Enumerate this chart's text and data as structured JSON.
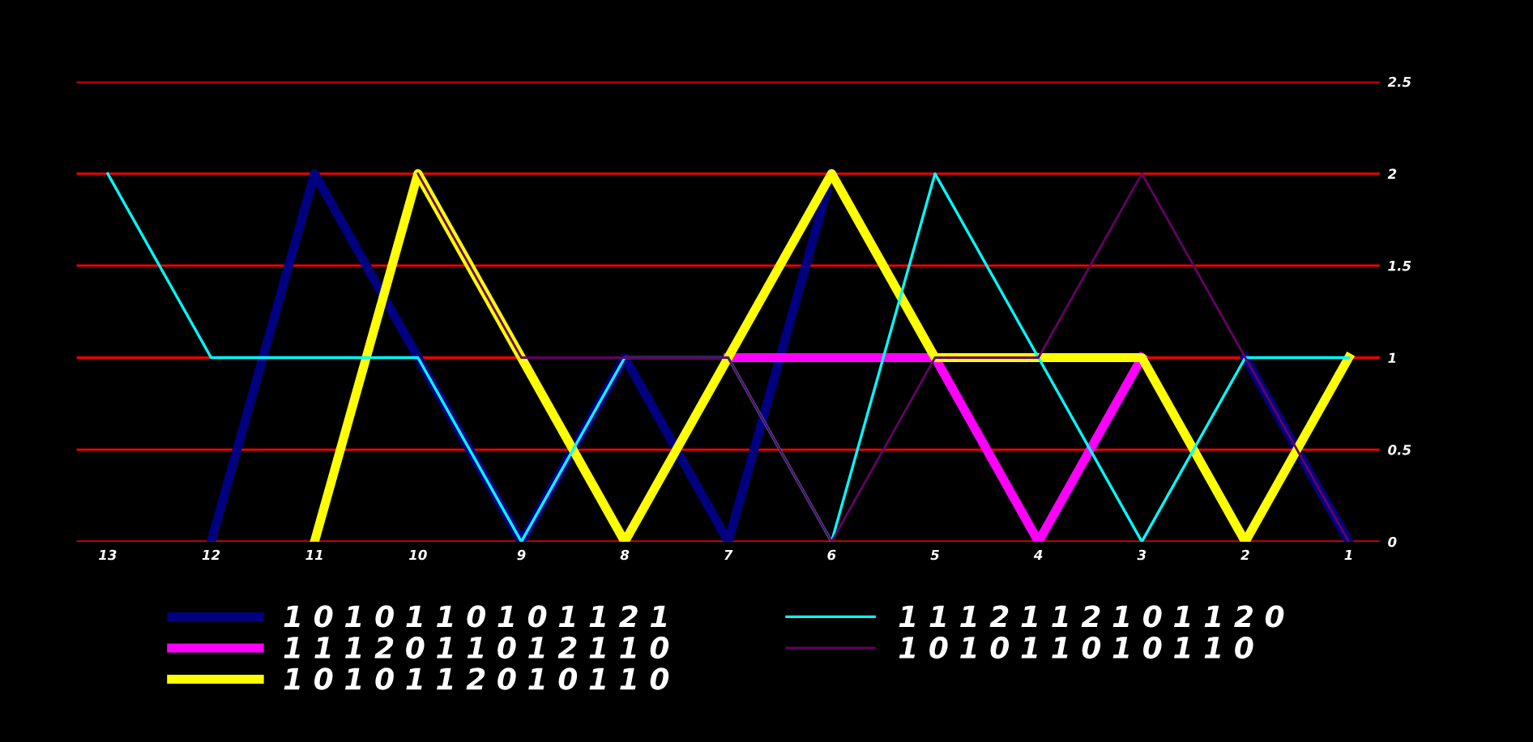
{
  "chart_data": {
    "type": "line",
    "categories": [
      "13",
      "12",
      "11",
      "10",
      "9",
      "8",
      "7",
      "6",
      "5",
      "4",
      "3",
      "2",
      "1"
    ],
    "series": [
      {
        "name": "1 0 1 0 1 1 0 1 0 1 1 2 1",
        "color": "#000080",
        "values": [
          null,
          0,
          2,
          1,
          0,
          1,
          0,
          2,
          null,
          null,
          null,
          1,
          0
        ]
      },
      {
        "name": "1 1 1 2 0 1 1 0 1 2 1 1 0",
        "color": "#ff00ff",
        "values": [
          null,
          null,
          null,
          null,
          null,
          null,
          1,
          1,
          1,
          0,
          1,
          null,
          null
        ]
      },
      {
        "name": "1 0 1 0 1 1 2 0 1 0 1 1 0",
        "color": "#ffff00",
        "values": [
          null,
          null,
          0,
          2,
          1,
          0,
          1,
          2,
          1,
          1,
          1,
          0,
          1
        ]
      },
      {
        "name": "1 1 1 2 1 1 2 1 0 1 1 2 0",
        "color": "#00ffff",
        "values": [
          2,
          1,
          1,
          1,
          0,
          1,
          1,
          0,
          2,
          1,
          0,
          1,
          1
        ]
      },
      {
        "name": "1 0 1 0 1 1 0 1 0 1 1 0",
        "color": "#660066",
        "values": [
          null,
          null,
          null,
          2,
          1,
          1,
          1,
          0,
          1,
          1,
          2,
          1,
          0
        ]
      }
    ],
    "ylim": [
      0,
      2.5
    ],
    "yticks": [
      0,
      0.5,
      1,
      1.5,
      2,
      2.5
    ],
    "grid": "y",
    "legend": "bottom",
    "marker": "none",
    "line_style": "solid"
  }
}
